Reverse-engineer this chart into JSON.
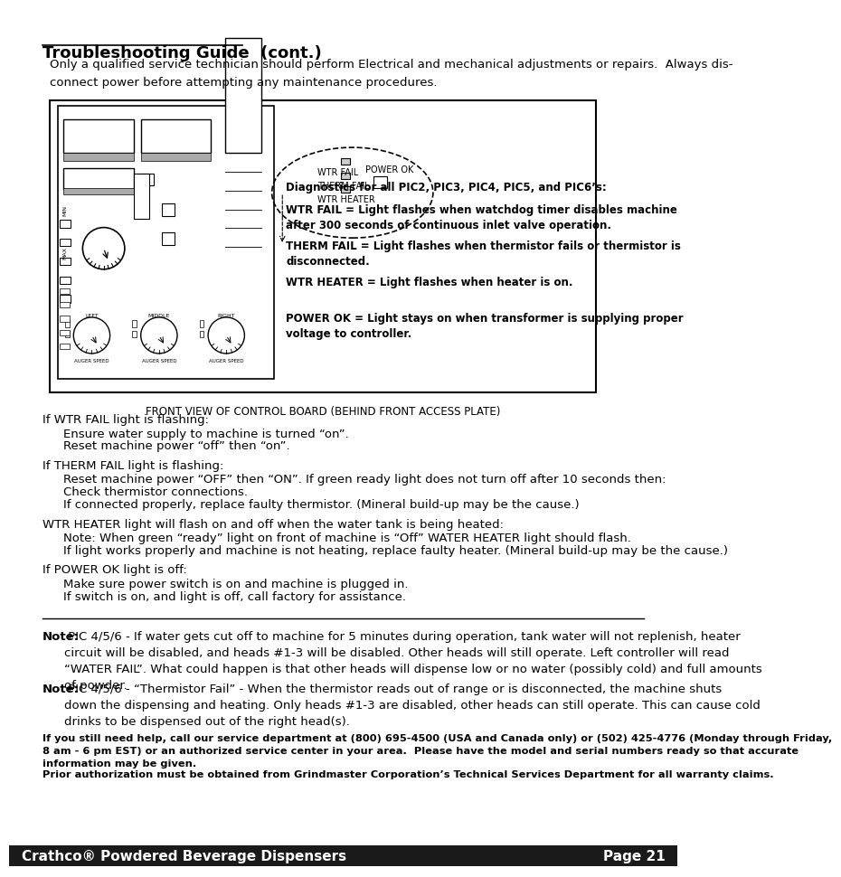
{
  "title": "Troubleshooting Guide  (cont.)",
  "intro_text": "Only a qualified service technician should perform Electrical and mechanical adjustments or repairs.  Always dis-\nconnect power before attempting any maintenance procedures.",
  "diagram_caption": "FRONT VIEW OF CONTROL BOARD (BEHIND FRONT ACCESS PLATE)",
  "diag_label_text": [
    "Diagnostics for all PIC2, PIC3, PIC4, PIC5, and PIC6’s:",
    "WTR FAIL = Light flashes when watchdog timer disables machine\nafter 300 seconds of continuous inlet valve operation.",
    "THERM FAIL = Light flashes when thermistor fails or thermistor is\ndisconnected.",
    "WTR HEATER = Light flashes when heater is on.",
    "POWER OK = Light stays on when transformer is supplying proper\nvoltage to controller."
  ],
  "wtr_fail_section": {
    "heading": "If WTR FAIL light is flashing:",
    "lines": [
      "Ensure water supply to machine is turned “on”.",
      "Reset machine power “off” then “on”."
    ]
  },
  "therm_fail_section": {
    "heading": "If THERM FAIL light is flashing:",
    "lines": [
      "Reset machine power “OFF” then “ON”. If green ready light does not turn off after 10 seconds then:",
      "Check thermistor connections.",
      "If connected properly, replace faulty thermistor. (Mineral build-up may be the cause.)"
    ]
  },
  "wtr_heater_section": {
    "heading": "WTR HEATER light will flash on and off when the water tank is being heated:",
    "lines": [
      "Note: When green “ready” light on front of machine is “Off” WATER HEATER light should flash.",
      "If light works properly and machine is not heating, replace faulty heater. (Mineral build-up may be the cause.)"
    ]
  },
  "power_ok_section": {
    "heading": "If POWER OK light is off:",
    "lines": [
      "Make sure power switch is on and machine is plugged in.",
      "If switch is on, and light is off, call factory for assistance."
    ]
  },
  "note1_bold": "Note:",
  "note1_text": " PIC 4/5/6 - If water gets cut off to machine for 5 minutes during operation, tank water will not replenish, heater\ncircuit will be disabled, and heads #1-3 will be disabled. Other heads will still operate. Left controller will read\n“WATER FAIL”. What could happen is that other heads will dispense low or no water (possibly cold) and full amounts\nof powder.",
  "note2_bold": "Note:",
  "note2_text": " PIC 4/5/6 - “Thermistor Fail” - When the thermistor reads out of range or is disconnected, the machine shuts\ndown the dispensing and heating. Only heads #1-3 are disabled, other heads can still operate. This can cause cold\ndrinks to be dispensed out of the right head(s).",
  "help_text_bold": "If you still need help, call our service department at (800) 695-4500 (USA and Canada only) or (502) 425-4776 (Monday through Friday,\n8 am - 6 pm EST) or an authorized service center in your area.  Please have the model and serial numbers ready so that accurate\ninformation may be given.",
  "warranty_text": "Prior authorization must be obtained from Grindmaster Corporation’s Technical Services Department for all warranty claims.",
  "footer_left": "Crathco® Powdered Beverage Dispensers",
  "footer_right": "Page 21",
  "bg_color": "#ffffff",
  "footer_bg": "#1a1a1a",
  "footer_text_color": "#ffffff",
  "border_color": "#000000",
  "text_color": "#000000"
}
